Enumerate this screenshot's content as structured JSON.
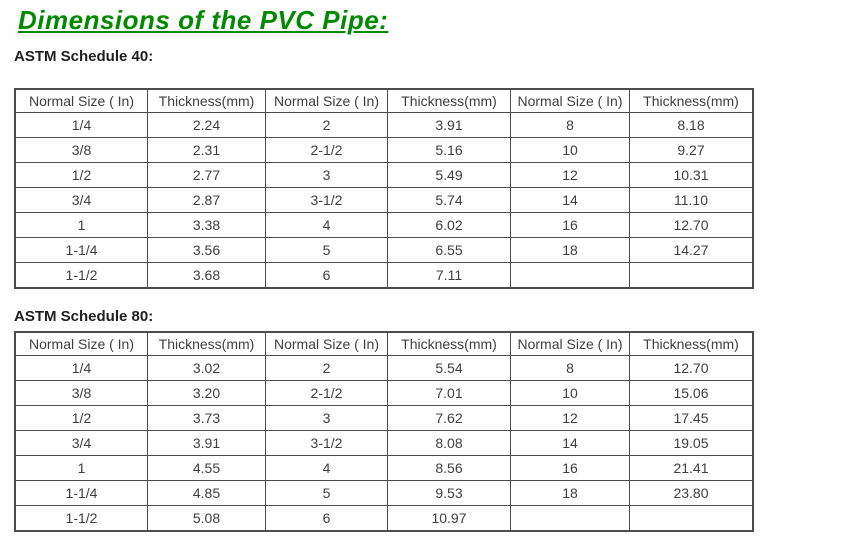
{
  "page": {
    "title": "Dimensions of the PVC Pipe:",
    "colors": {
      "title_green": "#008A00",
      "table_border": "#4c4c4c",
      "cell_text": "#3f3f3f",
      "subtitle_text": "#1f1f1f",
      "background": "#ffffff"
    }
  },
  "tables": [
    {
      "subtitle": "ASTM Schedule 40:",
      "headers": [
        "Normal Size ( In)",
        "Thickness(mm)",
        "Normal Size ( In)",
        "Thickness(mm)",
        "Normal Size ( In)",
        "Thickness(mm)"
      ],
      "rows": [
        [
          "1/4",
          "2.24",
          "2",
          "3.91",
          "8",
          "8.18"
        ],
        [
          "3/8",
          "2.31",
          "2-1/2",
          "5.16",
          "10",
          "9.27"
        ],
        [
          "1/2",
          "2.77",
          "3",
          "5.49",
          "12",
          "10.31"
        ],
        [
          "3/4",
          "2.87",
          "3-1/2",
          "5.74",
          "14",
          "11.10"
        ],
        [
          "1",
          "3.38",
          "4",
          "6.02",
          "16",
          "12.70"
        ],
        [
          "1-1/4",
          "3.56",
          "5",
          "6.55",
          "18",
          "14.27"
        ],
        [
          "1-1/2",
          "3.68",
          "6",
          "7.11",
          "",
          ""
        ]
      ]
    },
    {
      "subtitle": "ASTM Schedule 80:",
      "headers": [
        "Normal Size ( In)",
        "Thickness(mm)",
        "Normal Size ( In)",
        "Thickness(mm)",
        "Normal Size ( In)",
        "Thickness(mm)"
      ],
      "rows": [
        [
          "1/4",
          "3.02",
          "2",
          "5.54",
          "8",
          "12.70"
        ],
        [
          "3/8",
          "3.20",
          "2-1/2",
          "7.01",
          "10",
          "15.06"
        ],
        [
          "1/2",
          "3.73",
          "3",
          "7.62",
          "12",
          "17.45"
        ],
        [
          "3/4",
          "3.91",
          "3-1/2",
          "8.08",
          "14",
          "19.05"
        ],
        [
          "1",
          "4.55",
          "4",
          "8.56",
          "16",
          "21.41"
        ],
        [
          "1-1/4",
          "4.85",
          "5",
          "9.53",
          "18",
          "23.80"
        ],
        [
          "1-1/2",
          "5.08",
          "6",
          "10.97",
          "",
          ""
        ]
      ]
    }
  ]
}
